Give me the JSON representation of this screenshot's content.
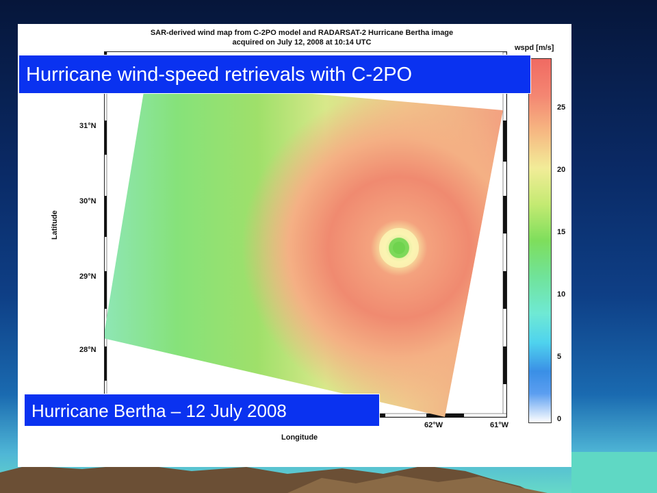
{
  "figure": {
    "title_line1": "SAR-derived wind map from C-2PO model and RADARSAT-2 Hurricane Bertha image",
    "title_line2": "acquired on July 12, 2008 at 10:14 UTC",
    "colorbar_label": "wspd [m/s]",
    "colorbar_ticks": [
      "25",
      "20",
      "15",
      "10",
      "5",
      "0"
    ],
    "lat_ticks": [
      "31°N",
      "30°N",
      "29°N",
      "28°N"
    ],
    "lon_ticks": [
      "62°W",
      "61°W"
    ],
    "xlabel": "Longitude",
    "ylabel": "Latitude"
  },
  "overlay": {
    "headline": "Hurricane wind-speed retrievals with C-2PO",
    "caption": "Hurricane Bertha – 12 July 2008"
  },
  "colors": {
    "overlay_blue": "#0a32f0",
    "background_top": "#06163a",
    "background_bottom": "#67d9c8"
  }
}
